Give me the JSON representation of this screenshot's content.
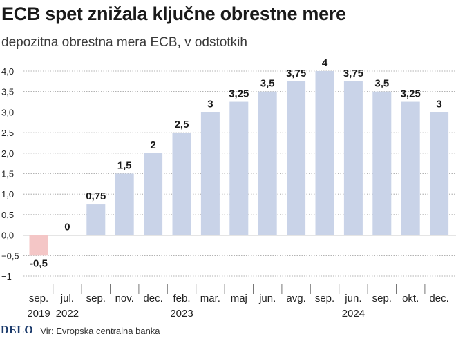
{
  "title": "ECB spet znižala ključne obrestne mere",
  "subtitle": "depozitna obrestna mera ECB, v odstotkih",
  "footer": {
    "logo": "DELO",
    "source": "Vir: Evropska centralna banka"
  },
  "colors": {
    "positive_bar": "#c9d3e8",
    "negative_bar": "#f4c6c6",
    "grid": "#9a9a9a",
    "text": "#1a1a1a"
  },
  "chart_data": {
    "type": "bar",
    "categories": [
      "sep.",
      "jul.",
      "sep.",
      "nov.",
      "dec.",
      "feb.",
      "mar.",
      "maj",
      "jun.",
      "avg.",
      "sep.",
      "jun.",
      "sep.",
      "okt.",
      "dec."
    ],
    "year_labels": [
      {
        "category_index": 0,
        "label": "2019"
      },
      {
        "category_index": 1,
        "label": "2022"
      },
      {
        "category_index": 5,
        "label": "2023"
      },
      {
        "category_index": 11,
        "label": "2024"
      }
    ],
    "values": [
      -0.5,
      0,
      0.75,
      1.5,
      2,
      2.5,
      3,
      3.25,
      3.5,
      3.75,
      4,
      3.75,
      3.5,
      3.25,
      3
    ],
    "value_labels": [
      "-0,5",
      "0",
      "0,75",
      "1,5",
      "2",
      "2,5",
      "3",
      "3,25",
      "3,5",
      "3,75",
      "4",
      "3,75",
      "3,5",
      "3,25",
      "3"
    ],
    "ylim": [
      -1,
      4
    ],
    "yticks": [
      "−1",
      "−0,5",
      "0,0",
      "0,5",
      "1,0",
      "1,5",
      "2,0",
      "2,5",
      "3,0",
      "3,5",
      "4,0"
    ],
    "ytick_values": [
      -1,
      -0.5,
      0,
      0.5,
      1,
      1.5,
      2,
      2.5,
      3,
      3.5,
      4
    ],
    "grid": true,
    "xlabel": "",
    "ylabel": ""
  }
}
